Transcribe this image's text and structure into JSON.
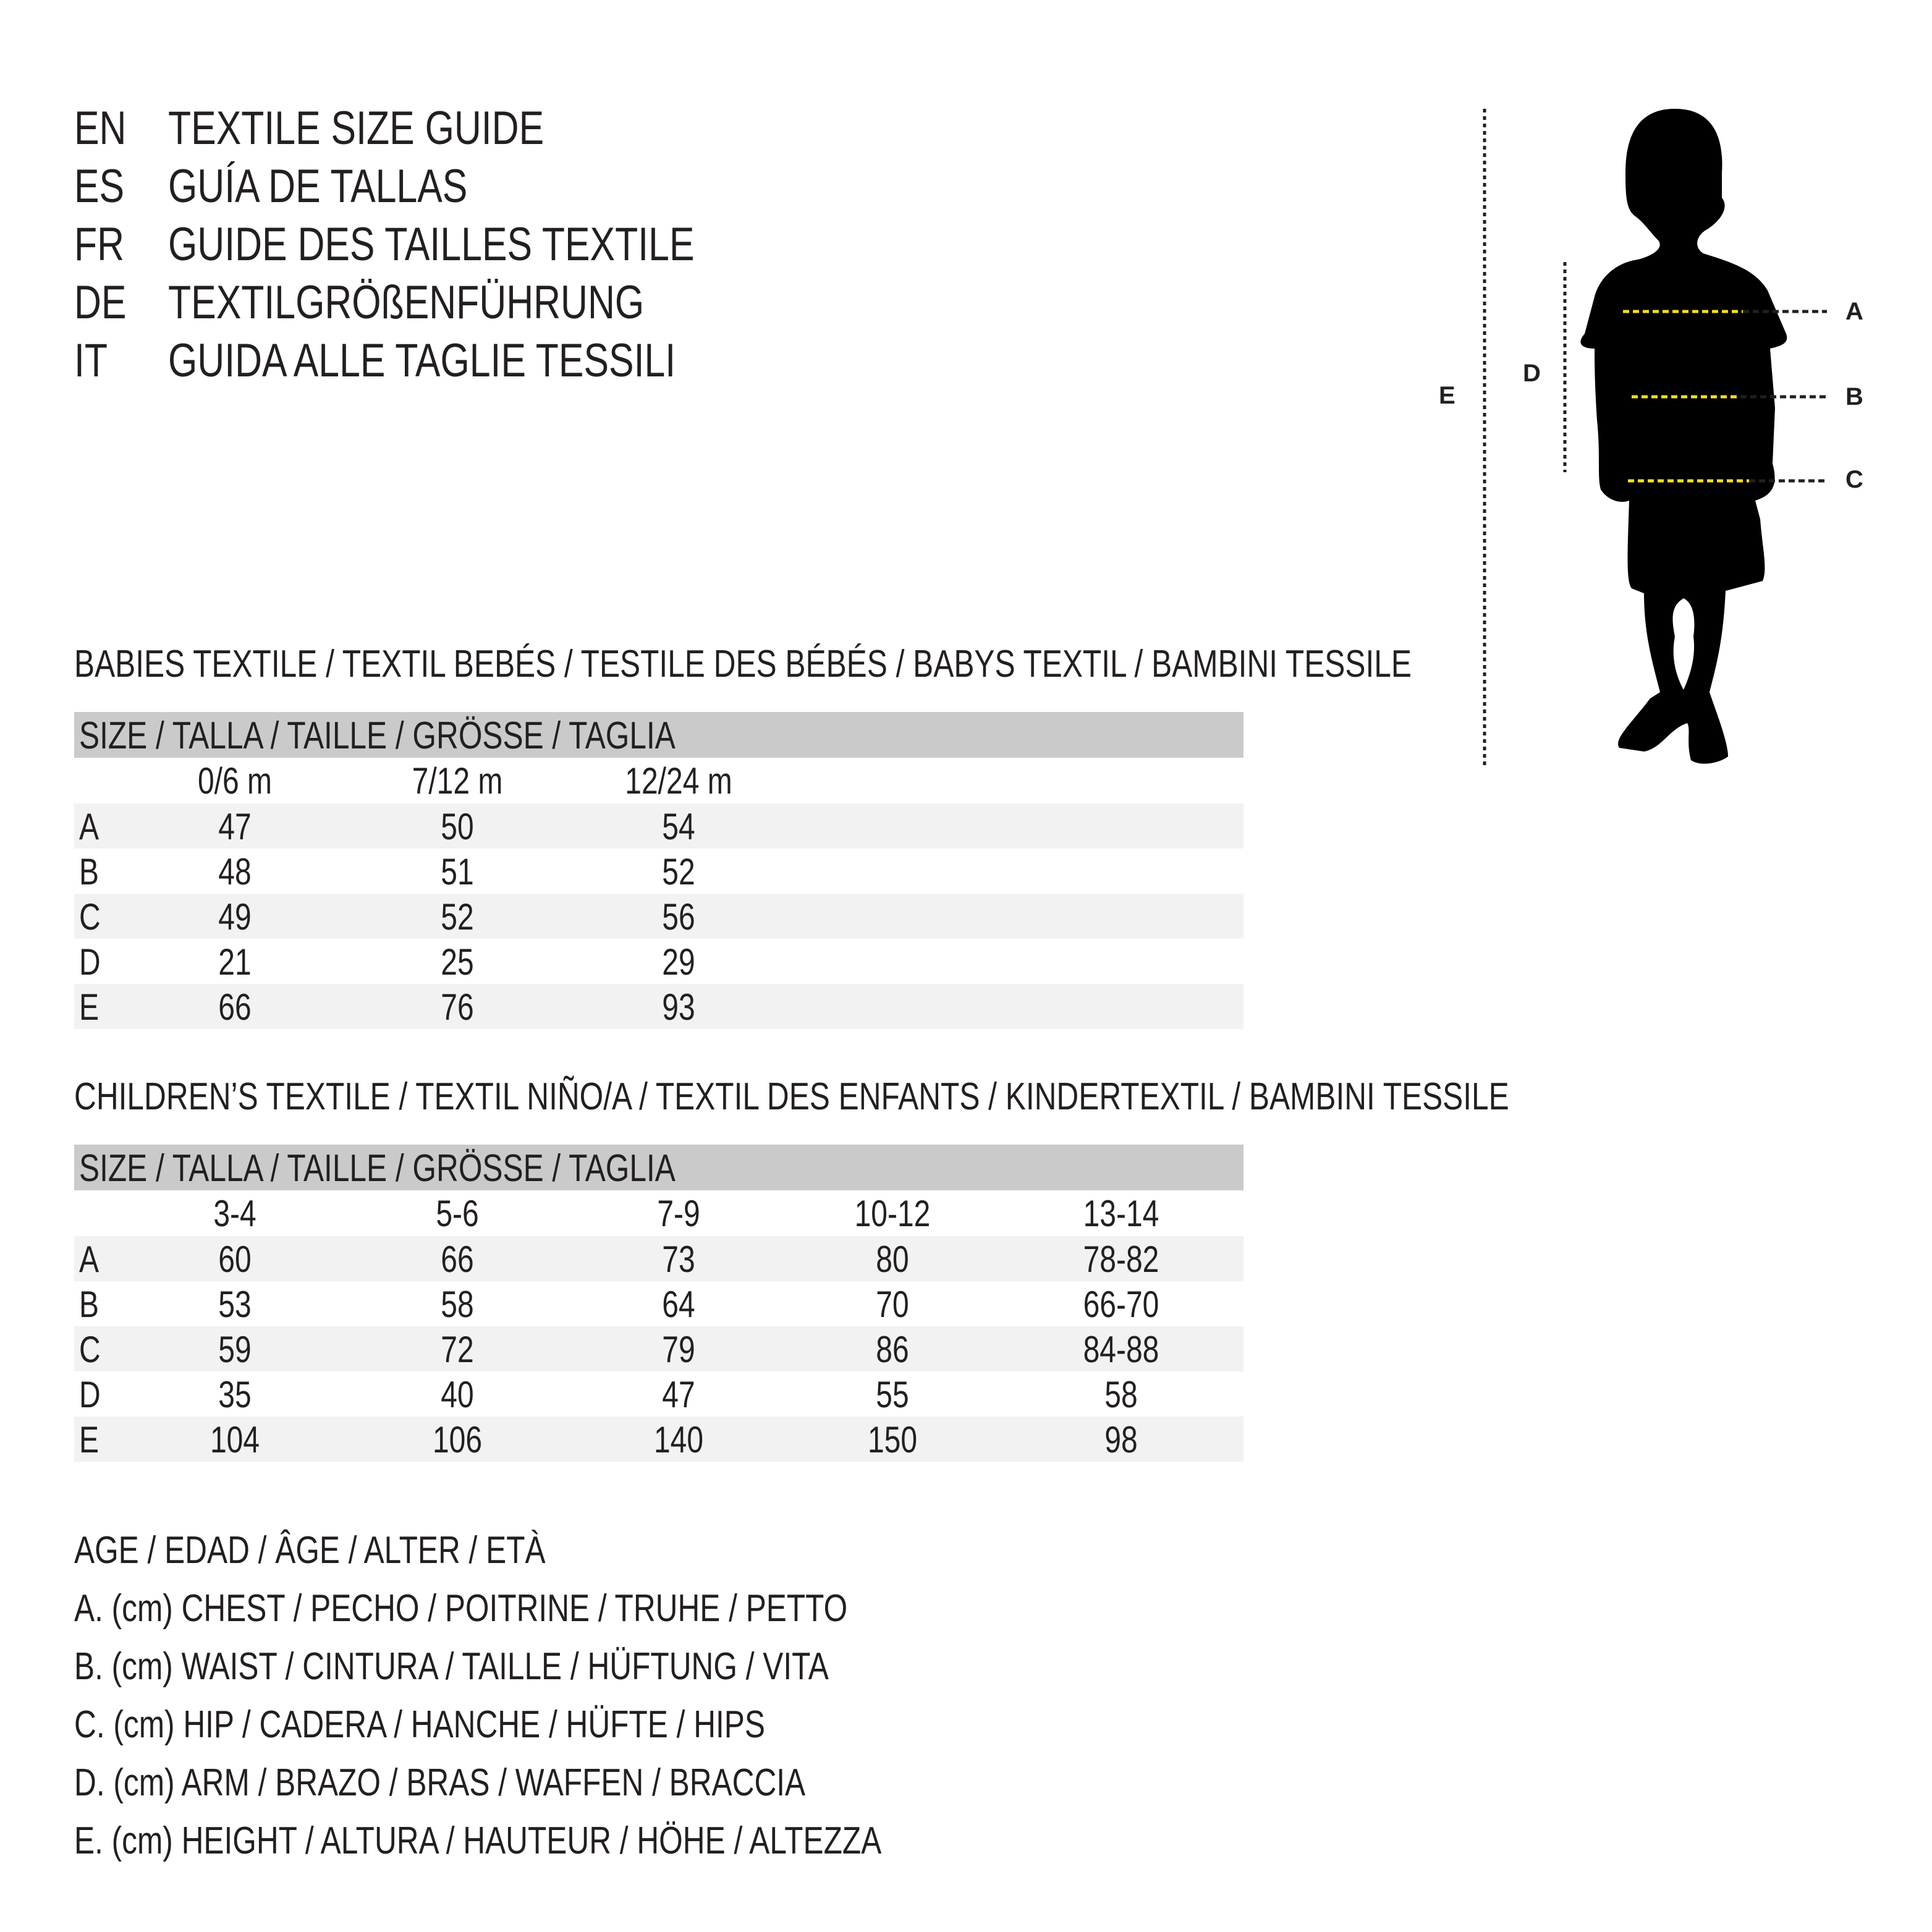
{
  "titles": [
    {
      "code": "EN",
      "text": "TEXTILE SIZE GUIDE"
    },
    {
      "code": "ES",
      "text": "GUÍA DE TALLAS"
    },
    {
      "code": "FR",
      "text": "GUIDE DES TAILLES TEXTILE"
    },
    {
      "code": "DE",
      "text": "TEXTILGRÖßENFÜHRUNG"
    },
    {
      "code": "IT",
      "text": "GUIDA ALLE TAGLIE TESSILI"
    }
  ],
  "tables": [
    {
      "heading": "BABIES TEXTILE / TEXTIL BEBÉS / TESTILE DES BÉBÉS / BABYS TEXTIL / BAMBINI TESSILE",
      "size_label": "SIZE / TALLA / TAILLE / GRÖSSE / TAGLIA",
      "columns": [
        "0/6 m",
        "7/12 m",
        "12/24 m"
      ],
      "rows": [
        {
          "label": "A",
          "values": [
            "47",
            "50",
            "54"
          ]
        },
        {
          "label": "B",
          "values": [
            "48",
            "51",
            "52"
          ]
        },
        {
          "label": "C",
          "values": [
            "49",
            "52",
            "56"
          ]
        },
        {
          "label": "D",
          "values": [
            "21",
            "25",
            "29"
          ]
        },
        {
          "label": "E",
          "values": [
            "66",
            "76",
            "93"
          ]
        }
      ]
    },
    {
      "heading": "CHILDREN’S TEXTILE / TEXTIL NIÑO/A / TEXTIL DES ENFANTS / KINDERTEXTIL / BAMBINI TESSILE",
      "size_label": "SIZE / TALLA / TAILLE / GRÖSSE / TAGLIA",
      "columns": [
        "3-4",
        "5-6",
        "7-9",
        "10-12",
        "13-14"
      ],
      "rows": [
        {
          "label": "A",
          "values": [
            "60",
            "66",
            "73",
            "80",
            "78-82"
          ]
        },
        {
          "label": "B",
          "values": [
            "53",
            "58",
            "64",
            "70",
            "66-70"
          ]
        },
        {
          "label": "C",
          "values": [
            "59",
            "72",
            "79",
            "86",
            "84-88"
          ]
        },
        {
          "label": "D",
          "values": [
            "35",
            "40",
            "47",
            "55",
            "58"
          ]
        },
        {
          "label": "E",
          "values": [
            "104",
            "106",
            "140",
            "150",
            "98"
          ]
        }
      ]
    }
  ],
  "legend": [
    "AGE / EDAD / ÂGE / ALTER / ETÀ",
    "A. (cm) CHEST / PECHO / POITRINE / TRUHE / PETTO",
    "B. (cm) WAIST / CINTURA / TAILLE / HÜFTUNG / VITA",
    "C. (cm) HIP / CADERA / HANCHE / HÜFTE / HIPS",
    "D. (cm) ARM / BRAZO / BRAS / WAFFEN / BRACCIA",
    "E. (cm) HEIGHT / ALTURA / HAUTEUR / HÖHE / ALTEZZA"
  ],
  "figure": {
    "labels": {
      "A": "A",
      "B": "B",
      "C": "C",
      "D": "D",
      "E": "E"
    },
    "colors": {
      "silhouette": "#000000",
      "measure_line": "#f5e01a",
      "dotted": "#231f20",
      "header_band": "#cacacb",
      "stripe": "#f2f2f2"
    }
  }
}
